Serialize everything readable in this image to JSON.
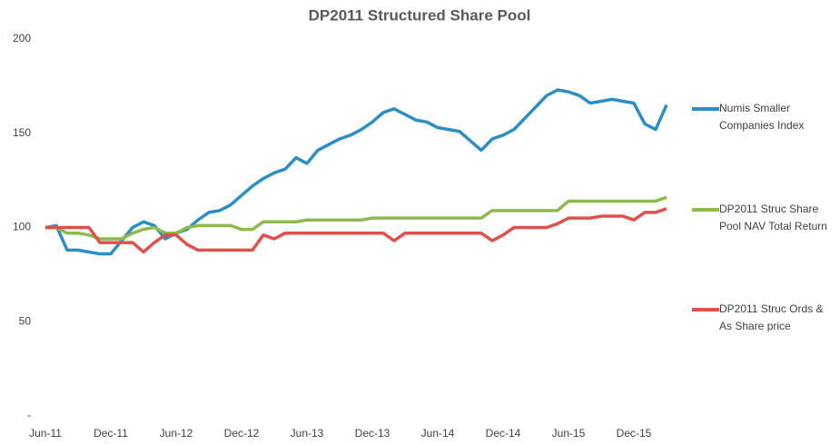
{
  "chart_data": {
    "type": "line",
    "title": "DP2011 Structured Share Pool",
    "categories": [
      "Jun-11",
      null,
      null,
      null,
      null,
      null,
      "Dec-11",
      null,
      null,
      null,
      null,
      null,
      "Jun-12",
      null,
      null,
      null,
      null,
      null,
      "Dec-12",
      null,
      null,
      null,
      null,
      null,
      "Jun-13",
      null,
      null,
      null,
      null,
      null,
      "Dec-13",
      null,
      null,
      null,
      null,
      null,
      "Jun-14",
      null,
      null,
      null,
      null,
      null,
      "Dec-14",
      null,
      null,
      null,
      null,
      null,
      "Jun-15",
      null,
      null,
      null,
      null,
      null,
      "Dec-15",
      null,
      null,
      null
    ],
    "series": [
      {
        "name": "Numis Smaller Companies Index",
        "color": "#2b8ec4",
        "values": [
          100,
          101,
          88,
          88,
          87,
          86,
          86,
          93,
          100,
          103,
          101,
          94,
          97,
          99,
          104,
          108,
          109,
          112,
          117,
          122,
          126,
          129,
          131,
          137,
          134,
          141,
          144,
          147,
          149,
          152,
          156,
          161,
          163,
          160,
          157,
          156,
          153,
          152,
          151,
          146,
          141,
          147,
          149,
          152,
          158,
          164,
          170,
          173,
          172,
          170,
          166,
          167,
          168,
          167,
          166,
          155,
          152,
          165
        ]
      },
      {
        "name": "DP2011 Struc Share Pool NAV Total Return",
        "color": "#8cba4f",
        "values": [
          100,
          100,
          97,
          97,
          96,
          94,
          94,
          94,
          97,
          99,
          100,
          97,
          97,
          100,
          101,
          101,
          101,
          101,
          99,
          99,
          103,
          103,
          103,
          103,
          104,
          104,
          104,
          104,
          104,
          104,
          105,
          105,
          105,
          105,
          105,
          105,
          105,
          105,
          105,
          105,
          105,
          109,
          109,
          109,
          109,
          109,
          109,
          109,
          114,
          114,
          114,
          114,
          114,
          114,
          114,
          114,
          114,
          116
        ]
      },
      {
        "name": "DP2011 Struc Ords & As Share price",
        "color": "#e0504a",
        "values": [
          100,
          100,
          100,
          100,
          100,
          92,
          92,
          92,
          92,
          87,
          92,
          96,
          96,
          91,
          88,
          88,
          88,
          88,
          88,
          88,
          96,
          94,
          97,
          97,
          97,
          97,
          97,
          97,
          97,
          97,
          97,
          97,
          93,
          97,
          97,
          97,
          97,
          97,
          97,
          97,
          97,
          93,
          96,
          100,
          100,
          100,
          100,
          102,
          105,
          105,
          105,
          106,
          106,
          106,
          104,
          108,
          108,
          110
        ]
      }
    ],
    "ylim": [
      0,
      200
    ],
    "yticks": [
      {
        "value": 0,
        "label": "-"
      },
      50,
      100,
      150,
      200
    ],
    "grid": false
  }
}
